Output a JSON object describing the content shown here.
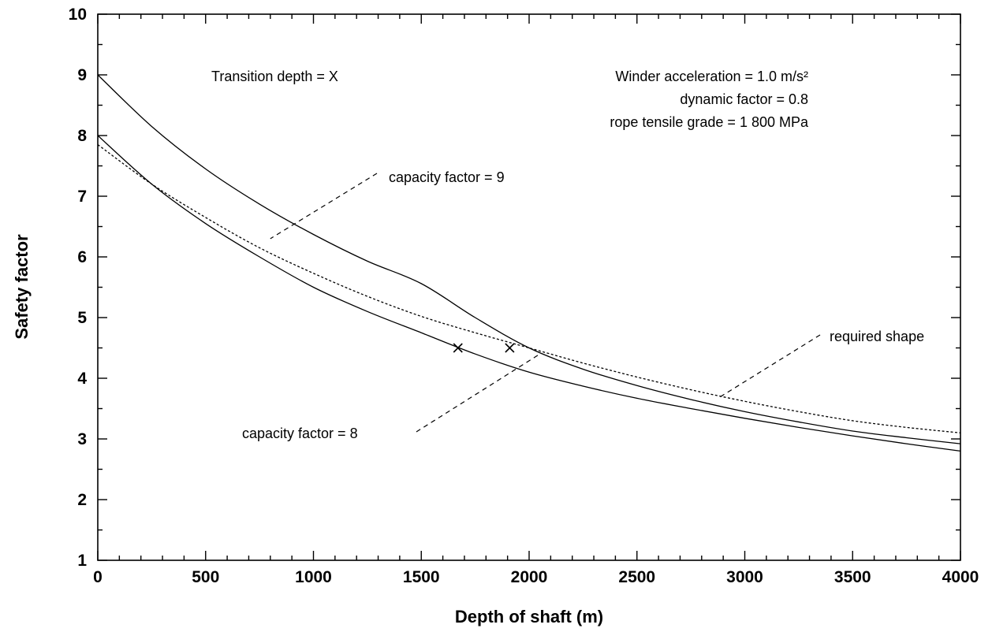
{
  "chart_data": {
    "type": "line",
    "xlabel": "Depth of shaft (m)",
    "ylabel": "Safety factor",
    "xlim": [
      0,
      4000
    ],
    "ylim": [
      1,
      10
    ],
    "x_ticks": [
      0,
      500,
      1000,
      1500,
      2000,
      2500,
      3000,
      3500,
      4000
    ],
    "y_ticks": [
      1,
      2,
      3,
      4,
      5,
      6,
      7,
      8,
      9,
      10
    ],
    "x_tick_labels": [
      "0",
      "500",
      "1000",
      "1500",
      "2000",
      "2500",
      "3000",
      "3500",
      "4000"
    ],
    "y_tick_labels": [
      "1",
      "2",
      "3",
      "4",
      "5",
      "6",
      "7",
      "8",
      "9",
      "10"
    ],
    "grid": false,
    "series": [
      {
        "name": "capacity factor = 9",
        "style": "solid",
        "x": [
          0,
          250,
          500,
          750,
          1000,
          1250,
          1500,
          1750,
          2000,
          2250,
          2500,
          2750,
          3000,
          3250,
          3500,
          3750,
          4000
        ],
        "y": [
          9.0,
          8.15,
          7.45,
          6.87,
          6.37,
          5.93,
          5.56,
          5.0,
          4.5,
          4.15,
          3.88,
          3.65,
          3.45,
          3.28,
          3.13,
          3.02,
          2.92
        ]
      },
      {
        "name": "capacity factor = 8",
        "style": "solid",
        "x": [
          0,
          250,
          500,
          750,
          1000,
          1250,
          1500,
          1750,
          2000,
          2250,
          2500,
          2750,
          3000,
          3250,
          3500,
          3750,
          4000
        ],
        "y": [
          8.0,
          7.2,
          6.55,
          6.0,
          5.5,
          5.1,
          4.75,
          4.4,
          4.1,
          3.87,
          3.67,
          3.5,
          3.34,
          3.19,
          3.05,
          2.92,
          2.8
        ]
      },
      {
        "name": "required shape",
        "style": "dotted",
        "x": [
          0,
          250,
          500,
          750,
          1000,
          1250,
          1500,
          1750,
          2000,
          2250,
          2500,
          2750,
          3000,
          3250,
          3500,
          3750,
          4000
        ],
        "y": [
          7.85,
          7.2,
          6.65,
          6.15,
          5.73,
          5.35,
          5.02,
          4.75,
          4.5,
          4.25,
          4.02,
          3.81,
          3.62,
          3.45,
          3.3,
          3.19,
          3.1
        ]
      }
    ],
    "transition_points": [
      {
        "x": 1670,
        "y": 4.5
      },
      {
        "x": 1910,
        "y": 4.5
      }
    ],
    "annotations": {
      "transition": "Transition depth = X",
      "winder_lines": [
        "Winder acceleration = 1.0 m/s²",
        "dynamic factor = 0.8",
        "rope tensile grade = 1 800 MPa"
      ],
      "label_cap9": "capacity factor = 9",
      "label_cap8": "capacity factor = 8",
      "label_required": "required shape",
      "transition_marker": "X"
    }
  }
}
